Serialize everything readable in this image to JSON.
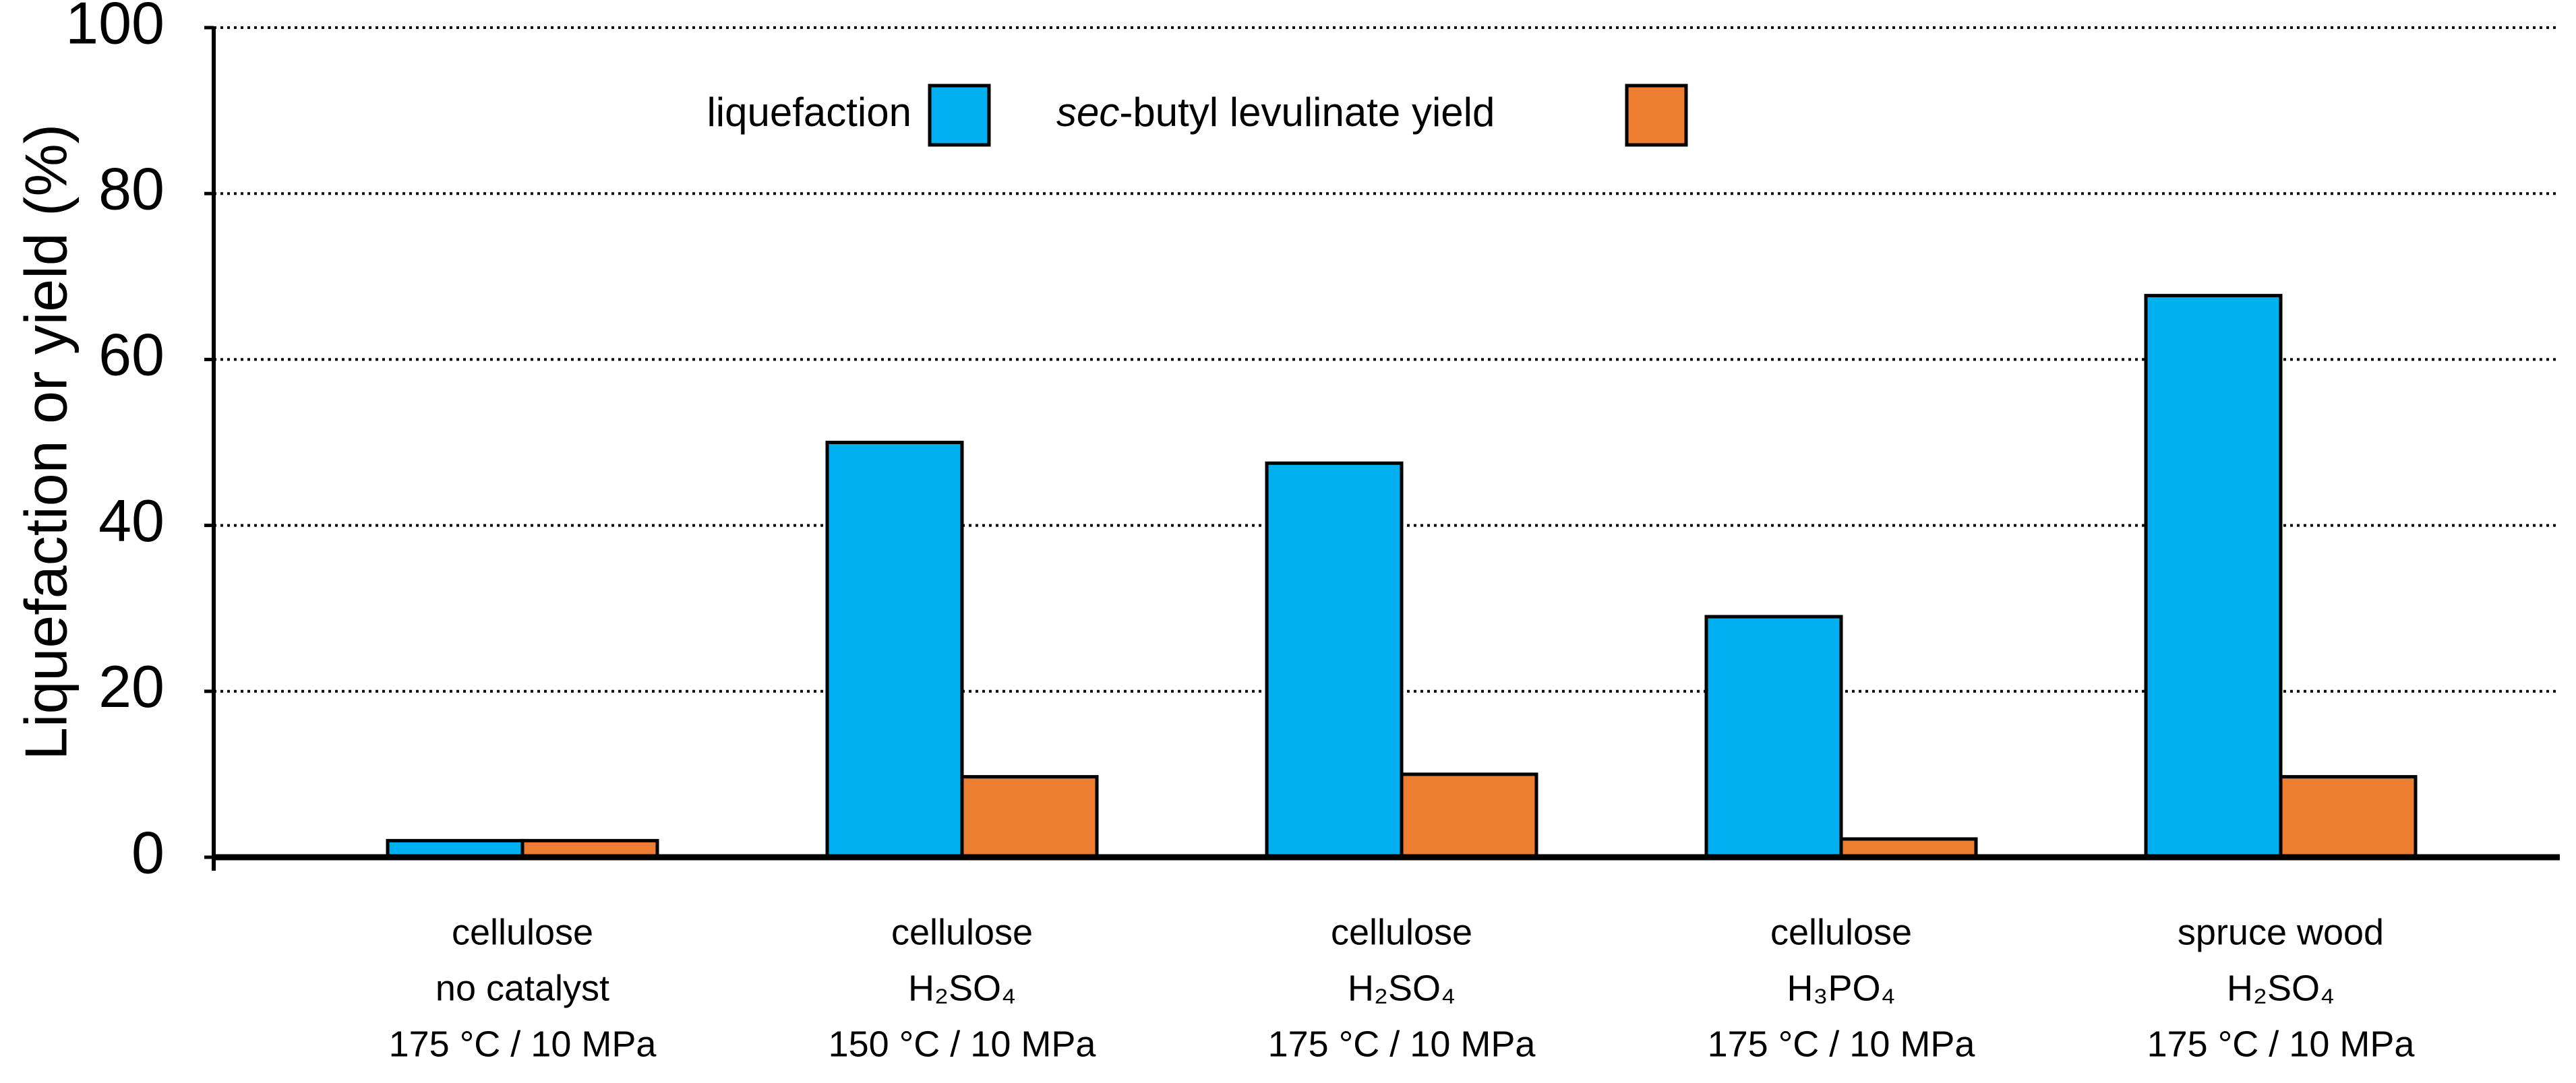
{
  "chart_data": {
    "type": "bar",
    "y_label": "Liquefaction or yield (%)",
    "categories": [
      [
        "cellulose",
        "no catalyst",
        "175 °C / 10 MPa"
      ],
      [
        "cellulose",
        "H₂SO₄",
        "150 °C / 10 MPa"
      ],
      [
        "cellulose",
        "H₂SO₄",
        "175 °C / 10 MPa"
      ],
      [
        "cellulose",
        "H₃PO₄",
        "175 °C / 10 MPa"
      ],
      [
        "spruce wood",
        "H₂SO₄",
        "175 °C / 10 MPa"
      ]
    ],
    "series": [
      {
        "name": "liquefaction",
        "color": "#00b0f0",
        "values": [
          2,
          50,
          47.5,
          29,
          67.7
        ]
      },
      {
        "name": "sec-butyl levulinate yield",
        "color": "#ed7d31",
        "values": [
          2,
          9.7,
          10,
          2.2,
          9.7
        ]
      }
    ],
    "ylim": [
      0,
      100
    ],
    "yticks": [
      0,
      20,
      40,
      60,
      80,
      100
    ],
    "grid": true
  }
}
